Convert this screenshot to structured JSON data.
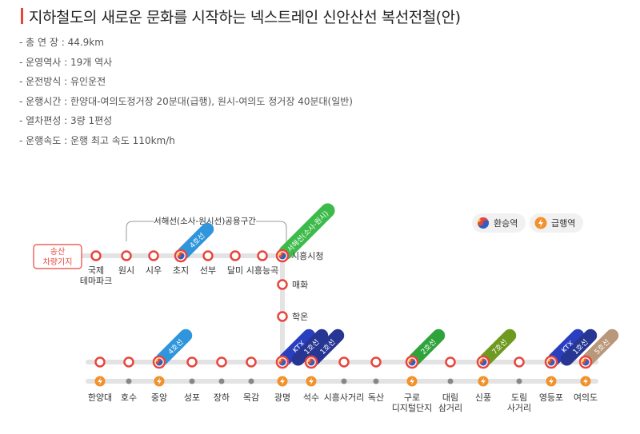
{
  "title": "지하철도의 새로운 문화를 시작하는 넥스트레인 신안산선 복선전철(안)",
  "specs": [
    {
      "key": "- 총  연  장",
      "value": " : 44.9km"
    },
    {
      "key": "- 운영역사",
      "value": " : 19개 역사"
    },
    {
      "key": "- 운전방식",
      "value": " : 유인운전"
    },
    {
      "key": "- 운행시간",
      "value": " : 한양대-여의도정거장 20분대(급행), 원시-여의도 정거장 40분대(일반)"
    },
    {
      "key": "- 열차편성",
      "value": " : 3량 1편성"
    },
    {
      "key": "- 운행속도",
      "value": " : 운행 최고 속도 110km/h"
    }
  ],
  "legend": {
    "transfer": "환승역",
    "express": "급행역"
  },
  "depot": [
    "송산",
    "차량기지"
  ],
  "shared_section_label": "서해선(소사-원시선)공용구간",
  "colors": {
    "title_accent": "#e8453c",
    "station_ring": "#e8453c",
    "express": "#f2912b",
    "track": "#e3e3e3",
    "line4": "#2f95dc",
    "line1": "#273593",
    "line2": "#2fa33b",
    "line7": "#6e9a20",
    "line5": "#b9977b",
    "ktx": "#2a3fc0",
    "seohae": "#3dbb4a"
  },
  "upper_stations": [
    {
      "name": "국제\n테마파크",
      "transfer": false
    },
    {
      "name": "원시",
      "transfer": false
    },
    {
      "name": "시우",
      "transfer": false
    },
    {
      "name": "초지",
      "transfer": true,
      "lines": [
        "4호선"
      ]
    },
    {
      "name": "선부",
      "transfer": false
    },
    {
      "name": "달미",
      "transfer": false
    },
    {
      "name": "시흥능곡",
      "transfer": false
    }
  ],
  "junction_station": {
    "name": "시흥시청",
    "transfer": true,
    "lines": [
      "서해선(소사-원시)"
    ]
  },
  "vertical_stations": [
    "매화",
    "학온"
  ],
  "lower_stations": [
    {
      "name": "한양대",
      "express": true,
      "transfer": false,
      "lines": []
    },
    {
      "name": "호수",
      "express": false,
      "transfer": false,
      "lines": []
    },
    {
      "name": "중앙",
      "express": true,
      "transfer": true,
      "lines": [
        "4호선"
      ]
    },
    {
      "name": "성포",
      "express": false,
      "transfer": false,
      "lines": []
    },
    {
      "name": "장하",
      "express": false,
      "transfer": false,
      "lines": []
    },
    {
      "name": "목감",
      "express": false,
      "transfer": false,
      "lines": []
    },
    {
      "name": "광명",
      "express": true,
      "transfer": true,
      "lines": [
        "KTX",
        "1호선"
      ]
    },
    {
      "name": "석수",
      "express": true,
      "transfer": true,
      "lines": [
        "1호선"
      ]
    },
    {
      "name": "시흥사거리",
      "express": false,
      "transfer": false,
      "lines": []
    },
    {
      "name": "독산",
      "express": false,
      "transfer": false,
      "lines": []
    },
    {
      "name": "구로\n디지털단지",
      "express": true,
      "transfer": true,
      "lines": [
        "2호선"
      ]
    },
    {
      "name": "대림\n삼거리",
      "express": false,
      "transfer": false,
      "lines": []
    },
    {
      "name": "신풍",
      "express": true,
      "transfer": true,
      "lines": [
        "7호선"
      ]
    },
    {
      "name": "도림\n사거리",
      "express": false,
      "transfer": false,
      "lines": []
    },
    {
      "name": "영등포",
      "express": true,
      "transfer": true,
      "lines": [
        "KTX",
        "1호선"
      ]
    },
    {
      "name": "여의도",
      "express": true,
      "transfer": true,
      "lines": [
        "5호선"
      ]
    }
  ]
}
